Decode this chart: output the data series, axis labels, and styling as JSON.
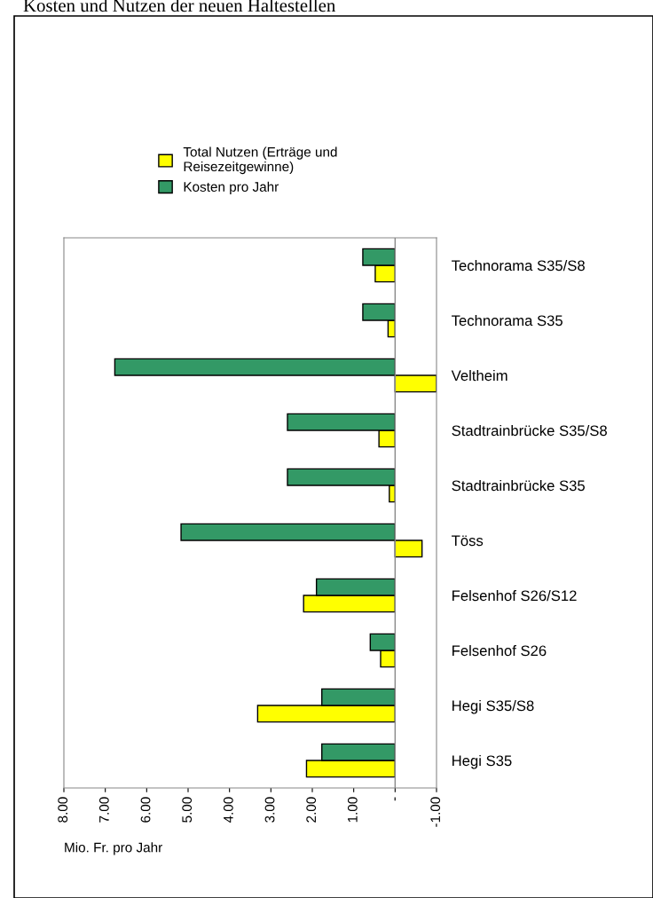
{
  "chart_data": {
    "type": "bar",
    "orientation": "horizontal",
    "title": "Kosten und Nutzen der neuen Haltestellen",
    "xlabel": "Mio. Fr. pro Jahr",
    "categories": [
      "Technorama S35/S8",
      "Technorama S35",
      "Veltheim",
      "Stadtrainbrücke S35/S8",
      "Stadtrainbrücke S35",
      "Töss",
      "Felsenhof S26/S12",
      "Felsenhof S26",
      "Hegi S35/S8",
      "Hegi S35"
    ],
    "series": [
      {
        "name": "Total Nutzen (Erträge und Reisezeitgewinne)",
        "color": "#ffff00",
        "values": [
          0.48,
          0.17,
          -1.0,
          0.39,
          0.14,
          -0.65,
          2.21,
          0.35,
          3.32,
          2.14
        ]
      },
      {
        "name": "Kosten pro Jahr",
        "color": "#339966",
        "values": [
          0.78,
          0.78,
          6.77,
          2.6,
          2.6,
          5.17,
          1.9,
          0.6,
          1.77,
          1.77
        ]
      }
    ],
    "xlim": [
      8,
      -1
    ],
    "xticks": [
      {
        "value": 8,
        "label": "8.00"
      },
      {
        "value": 7,
        "label": "7.00"
      },
      {
        "value": 6,
        "label": "6.00"
      },
      {
        "value": 5,
        "label": "5.00"
      },
      {
        "value": 4,
        "label": "4.00"
      },
      {
        "value": 3,
        "label": "3.00"
      },
      {
        "value": 2,
        "label": "2.00"
      },
      {
        "value": 1,
        "label": "1.00"
      },
      {
        "value": 0,
        "label": "-"
      },
      {
        "value": -1,
        "label": "-1.00"
      }
    ],
    "ref_lines": [
      {
        "axis": "x",
        "value": 0,
        "color": "#888888"
      }
    ],
    "legend": "top",
    "grid": false
  }
}
